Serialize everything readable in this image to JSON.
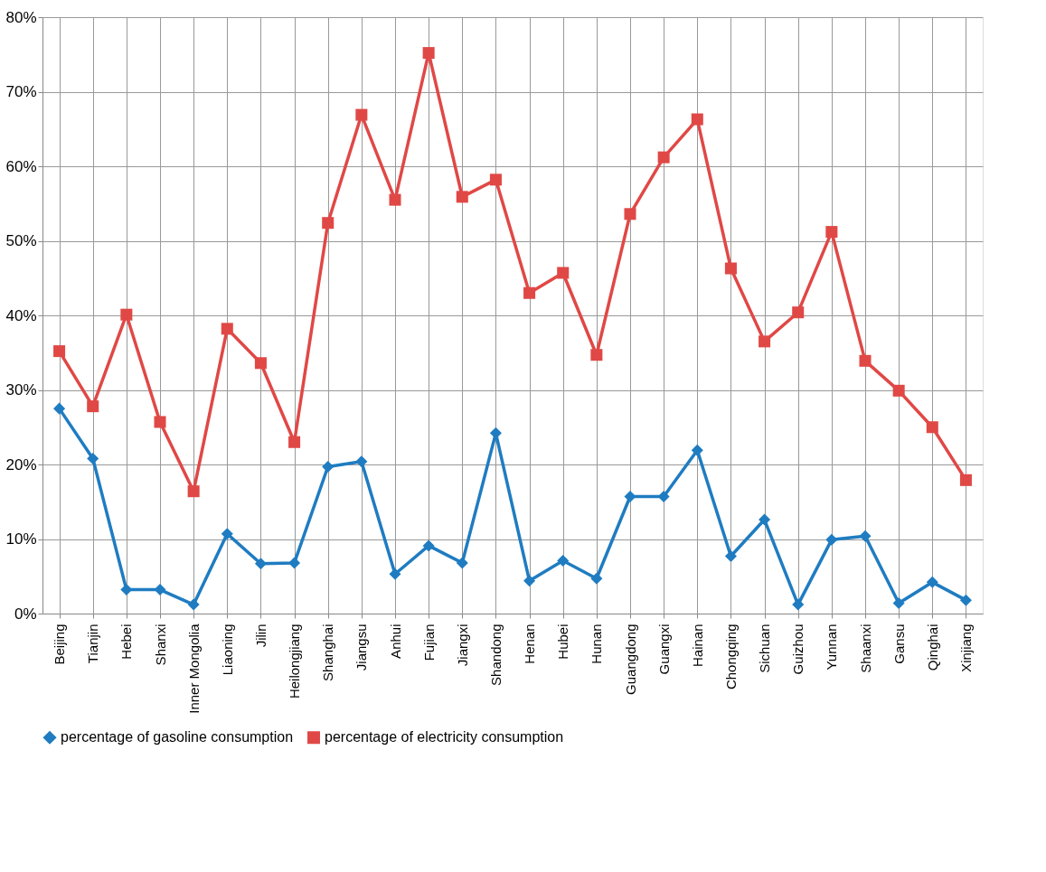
{
  "chart_data": {
    "type": "line",
    "categories": [
      "Beijing",
      "Tianjin",
      "Hebei",
      "Shanxi",
      "Inner Mongolia",
      "Liaoning",
      "Jilin",
      "Heilongjiang",
      "Shanghai",
      "Jiangsu",
      "Anhui",
      "Fujian",
      "Jiangxi",
      "Shandong",
      "Henan",
      "Hubei",
      "Hunan",
      "Guangdong",
      "Guangxi",
      "Hainan",
      "Chongqing",
      "Sichuan",
      "Guizhou",
      "Yunnan",
      "Shaanxi",
      "Gansu",
      "Qinghai",
      "Xinjiang"
    ],
    "series": [
      {
        "name": "percentage of gasoline consumption",
        "color": "#1f7cc1",
        "marker": "diamond",
        "values": [
          27.5,
          20.8,
          3.2,
          3.2,
          1.2,
          10.7,
          6.7,
          6.8,
          19.7,
          20.4,
          5.3,
          9.1,
          6.8,
          24.2,
          4.4,
          7.1,
          4.7,
          15.7,
          15.7,
          21.9,
          7.7,
          12.6,
          1.2,
          9.9,
          10.4,
          1.4,
          4.2,
          1.8
        ]
      },
      {
        "name": "percentage of electricity consumption",
        "color": "#e04846",
        "marker": "square",
        "values": [
          35.2,
          27.8,
          40.1,
          25.7,
          16.4,
          38.2,
          33.6,
          23.0,
          52.4,
          66.9,
          55.5,
          75.2,
          55.9,
          58.2,
          43.0,
          45.7,
          34.7,
          53.6,
          61.2,
          66.3,
          46.3,
          36.5,
          40.4,
          51.2,
          33.9,
          29.9,
          25.0,
          17.9
        ]
      }
    ],
    "ylim": [
      0,
      80
    ],
    "yticks": [
      {
        "value": 0,
        "label": "0%"
      },
      {
        "value": 10,
        "label": "10%"
      },
      {
        "value": 20,
        "label": "20%"
      },
      {
        "value": 30,
        "label": "30%"
      },
      {
        "value": 40,
        "label": "40%"
      },
      {
        "value": 50,
        "label": "50%"
      },
      {
        "value": 60,
        "label": "60%"
      },
      {
        "value": 70,
        "label": "70%"
      },
      {
        "value": 80,
        "label": "80%"
      }
    ],
    "grid": true,
    "legend": "bottom",
    "line_style": "solid"
  }
}
